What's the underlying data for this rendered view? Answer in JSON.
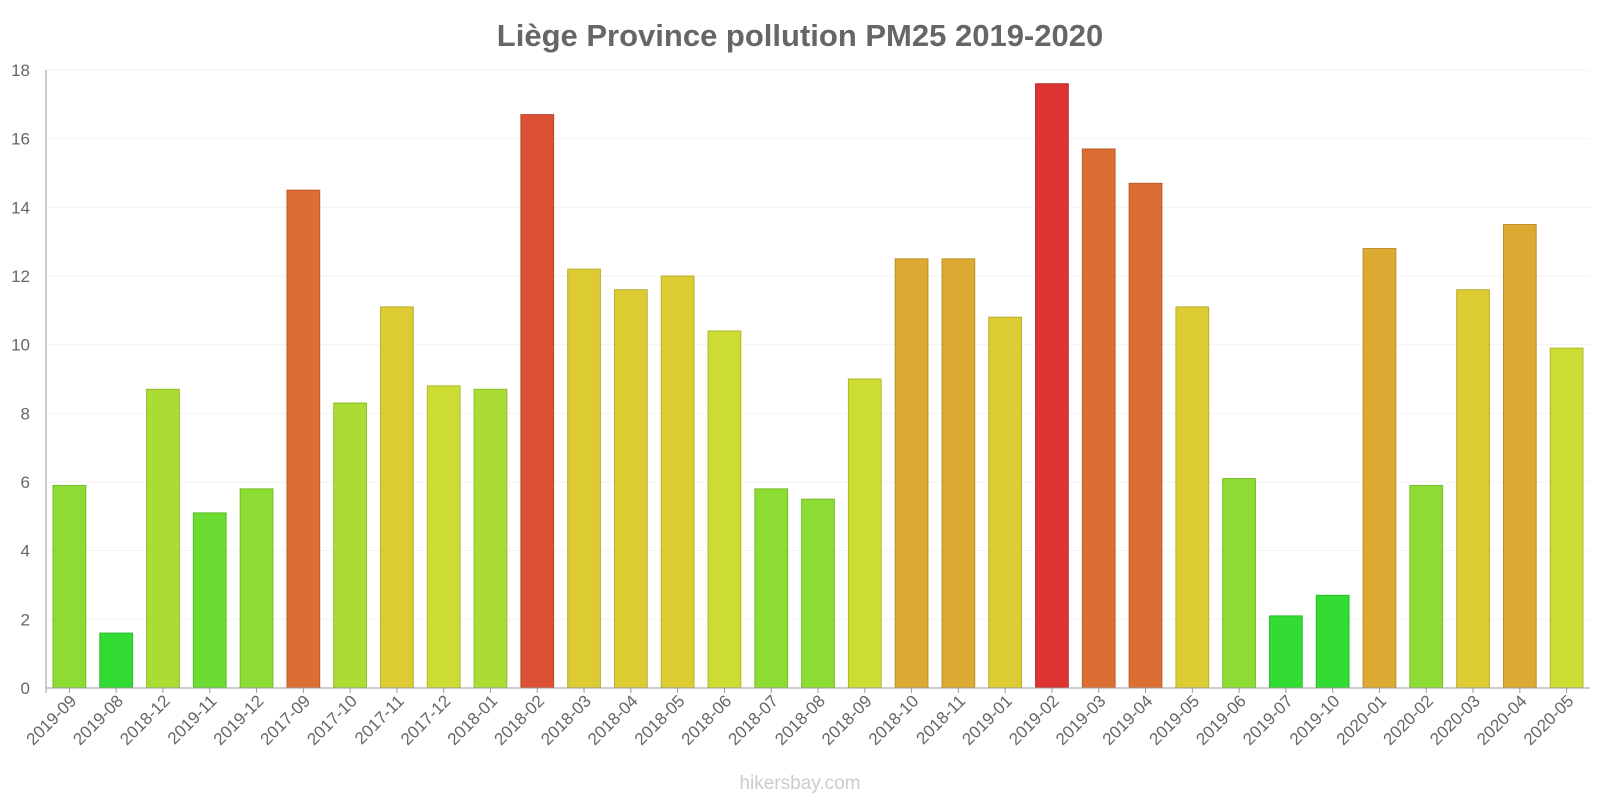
{
  "chart_data": {
    "type": "bar",
    "title": "Liège Province pollution PM25 2019-2020",
    "xlabel": "",
    "ylabel": "",
    "ylim": [
      0,
      18
    ],
    "yticks": [
      0,
      2,
      4,
      6,
      8,
      10,
      12,
      14,
      16,
      18
    ],
    "grid": true,
    "categories": [
      "2019-09",
      "2019-08",
      "2018-12",
      "2019-11",
      "2019-12",
      "2017-09",
      "2017-10",
      "2017-11",
      "2017-12",
      "2018-01",
      "2018-02",
      "2018-03",
      "2018-04",
      "2018-05",
      "2018-06",
      "2018-07",
      "2018-08",
      "2018-09",
      "2018-10",
      "2018-11",
      "2019-01",
      "2019-02",
      "2019-03",
      "2019-04",
      "2019-05",
      "2019-06",
      "2019-07",
      "2019-10",
      "2020-01",
      "2020-02",
      "2020-03",
      "2020-04",
      "2020-05"
    ],
    "values": [
      5.9,
      1.6,
      8.7,
      5.1,
      5.8,
      14.5,
      8.3,
      11.1,
      8.8,
      8.7,
      16.7,
      12.2,
      11.6,
      12.0,
      10.4,
      5.8,
      5.5,
      9.0,
      12.5,
      12.5,
      10.8,
      17.6,
      15.7,
      14.7,
      11.1,
      6.1,
      2.1,
      2.7,
      12.8,
      5.9,
      11.6,
      13.5,
      9.9
    ],
    "bar_colors": [
      "#8cdc33",
      "#33dc33",
      "#aadc33",
      "#6cdc33",
      "#8cdc33",
      "#dc6e33",
      "#aadc33",
      "#dccb33",
      "#ccdc33",
      "#aadc33",
      "#dc5033",
      "#dccb33",
      "#dccb33",
      "#dccb33",
      "#ccdc33",
      "#8cdc33",
      "#8cdc33",
      "#ccdc33",
      "#dcaa33",
      "#dcaa33",
      "#dccb33",
      "#dc3333",
      "#dc6e33",
      "#dc6e33",
      "#dccb33",
      "#8cdc33",
      "#33dc33",
      "#33dc33",
      "#dcaa33",
      "#8cdc33",
      "#dccb33",
      "#dcaa33",
      "#ccdc33"
    ]
  },
  "credit": "hikersbay.com"
}
